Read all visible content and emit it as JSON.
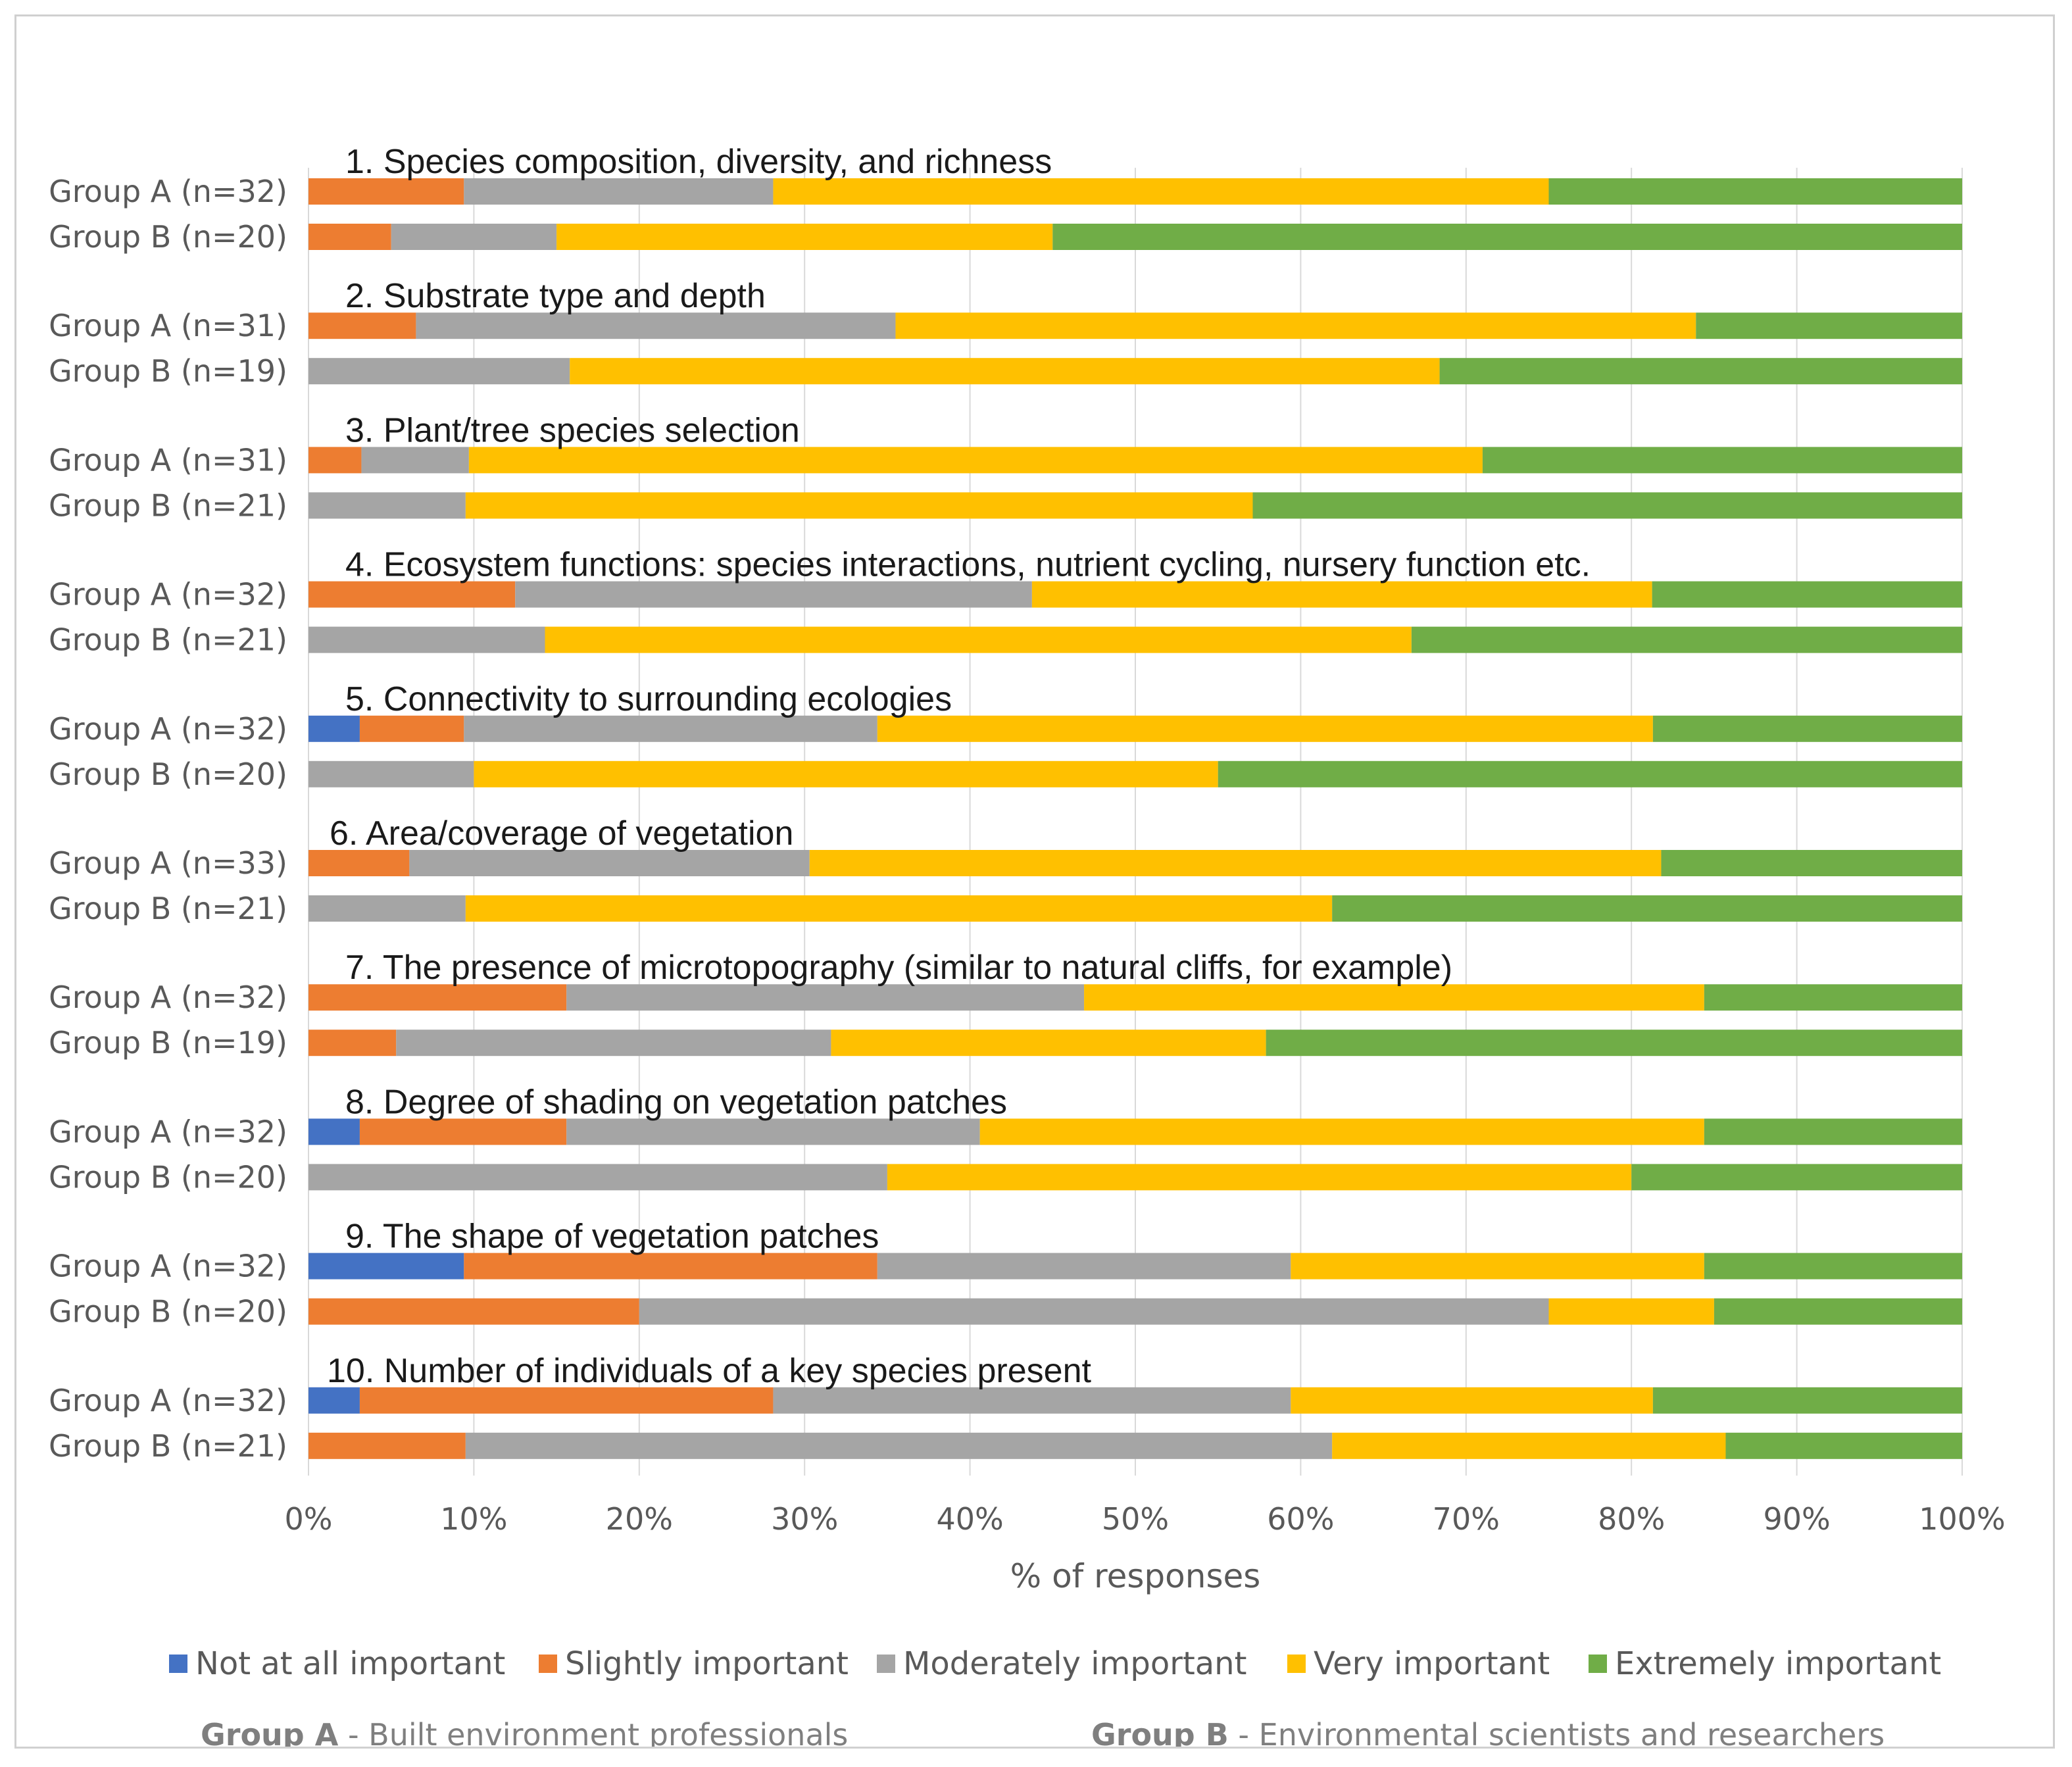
{
  "chart_data": {
    "type": "bar",
    "orientation": "horizontal",
    "stacked": "percent",
    "xlabel": "% of responses",
    "xlim": [
      0,
      100
    ],
    "ticks": [
      "0%",
      "10%",
      "20%",
      "30%",
      "40%",
      "50%",
      "60%",
      "70%",
      "80%",
      "90%",
      "100%"
    ],
    "gridlines": true,
    "series": [
      {
        "name": "Not at all important",
        "color": "#4472c4"
      },
      {
        "name": "Slightly important",
        "color": "#ed7d31"
      },
      {
        "name": "Moderately important",
        "color": "#a5a5a5"
      },
      {
        "name": "Very important",
        "color": "#ffc000"
      },
      {
        "name": "Extremely important",
        "color": "#70ad47"
      }
    ],
    "items": [
      {
        "title": "1. Species composition, diversity,  and richness",
        "rows": [
          {
            "label": "Group A (n=32)",
            "values": [
              0,
              9.4,
              18.7,
              46.9,
              25.0
            ]
          },
          {
            "label": "Group B (n=20)",
            "values": [
              0,
              5.0,
              10.0,
              30.0,
              55.0
            ]
          }
        ]
      },
      {
        "title": "2. Substrate type and depth",
        "rows": [
          {
            "label": "Group A (n=31)",
            "values": [
              0,
              6.5,
              29.0,
              48.4,
              16.1
            ]
          },
          {
            "label": "Group B (n=19)",
            "values": [
              0,
              0,
              15.8,
              52.6,
              31.6
            ]
          }
        ]
      },
      {
        "title": "3. Plant/tree  species selection",
        "rows": [
          {
            "label": "Group A (n=31)",
            "values": [
              0,
              3.2,
              6.5,
              61.3,
              29.0
            ]
          },
          {
            "label": "Group B (n=21)",
            "values": [
              0,
              0,
              9.5,
              47.6,
              42.9
            ]
          }
        ]
      },
      {
        "title": "4. Ecosystem functions: species interactions, nutrient cycling, nursery function etc.",
        "rows": [
          {
            "label": "Group A (n=32)",
            "values": [
              0,
              12.5,
              31.25,
              37.5,
              18.75
            ]
          },
          {
            "label": "Group B (n=21)",
            "values": [
              0,
              0,
              14.3,
              52.4,
              33.3
            ]
          }
        ]
      },
      {
        "title": "5. Connectivity  to surrounding ecologies",
        "rows": [
          {
            "label": "Group A (n=32)",
            "values": [
              3.1,
              6.3,
              25.0,
              46.9,
              18.7
            ]
          },
          {
            "label": "Group B (n=20)",
            "values": [
              0,
              0,
              10.0,
              45.0,
              45.0
            ]
          }
        ]
      },
      {
        "title": "6. Area/coverage of vegetation",
        "rows": [
          {
            "label": "Group A (n=33)",
            "values": [
              0,
              6.1,
              24.2,
              51.5,
              18.2
            ]
          },
          {
            "label": "Group B (n=21)",
            "values": [
              0,
              0,
              9.5,
              52.4,
              38.1
            ]
          }
        ]
      },
      {
        "title": "7. The presence of microtopography  (similar to natural cliffs,  for example)",
        "rows": [
          {
            "label": "Group A (n=32)",
            "values": [
              0,
              15.6,
              31.3,
              37.5,
              15.6
            ]
          },
          {
            "label": "Group B (n=19)",
            "values": [
              0,
              5.3,
              26.3,
              26.3,
              42.1
            ]
          }
        ]
      },
      {
        "title": "8. Degree of shading on vegetation patches",
        "rows": [
          {
            "label": "Group A (n=32)",
            "values": [
              3.1,
              12.5,
              25.0,
              43.8,
              15.6
            ]
          },
          {
            "label": "Group B (n=20)",
            "values": [
              0,
              0,
              35.0,
              45.0,
              20.0
            ]
          }
        ]
      },
      {
        "title": "9. The shape of vegetation patches",
        "rows": [
          {
            "label": "Group A (n=32)",
            "values": [
              9.4,
              25.0,
              25.0,
              25.0,
              15.6
            ]
          },
          {
            "label": "Group B (n=20)",
            "values": [
              0,
              20.0,
              55.0,
              10.0,
              15.0
            ]
          }
        ]
      },
      {
        "title": "10. Number of individuals of a key species present",
        "rows": [
          {
            "label": "Group A (n=32)",
            "values": [
              3.1,
              25.0,
              31.3,
              21.9,
              18.7
            ]
          },
          {
            "label": "Group B (n=21)",
            "values": [
              0,
              9.5,
              52.4,
              23.8,
              14.3
            ]
          }
        ]
      }
    ]
  },
  "footnote": {
    "group_a": {
      "bold": "Group A",
      "text": " - Built environment professionals"
    },
    "group_b": {
      "bold": "Group B",
      "text": " - Environmental scientists and researchers"
    }
  }
}
